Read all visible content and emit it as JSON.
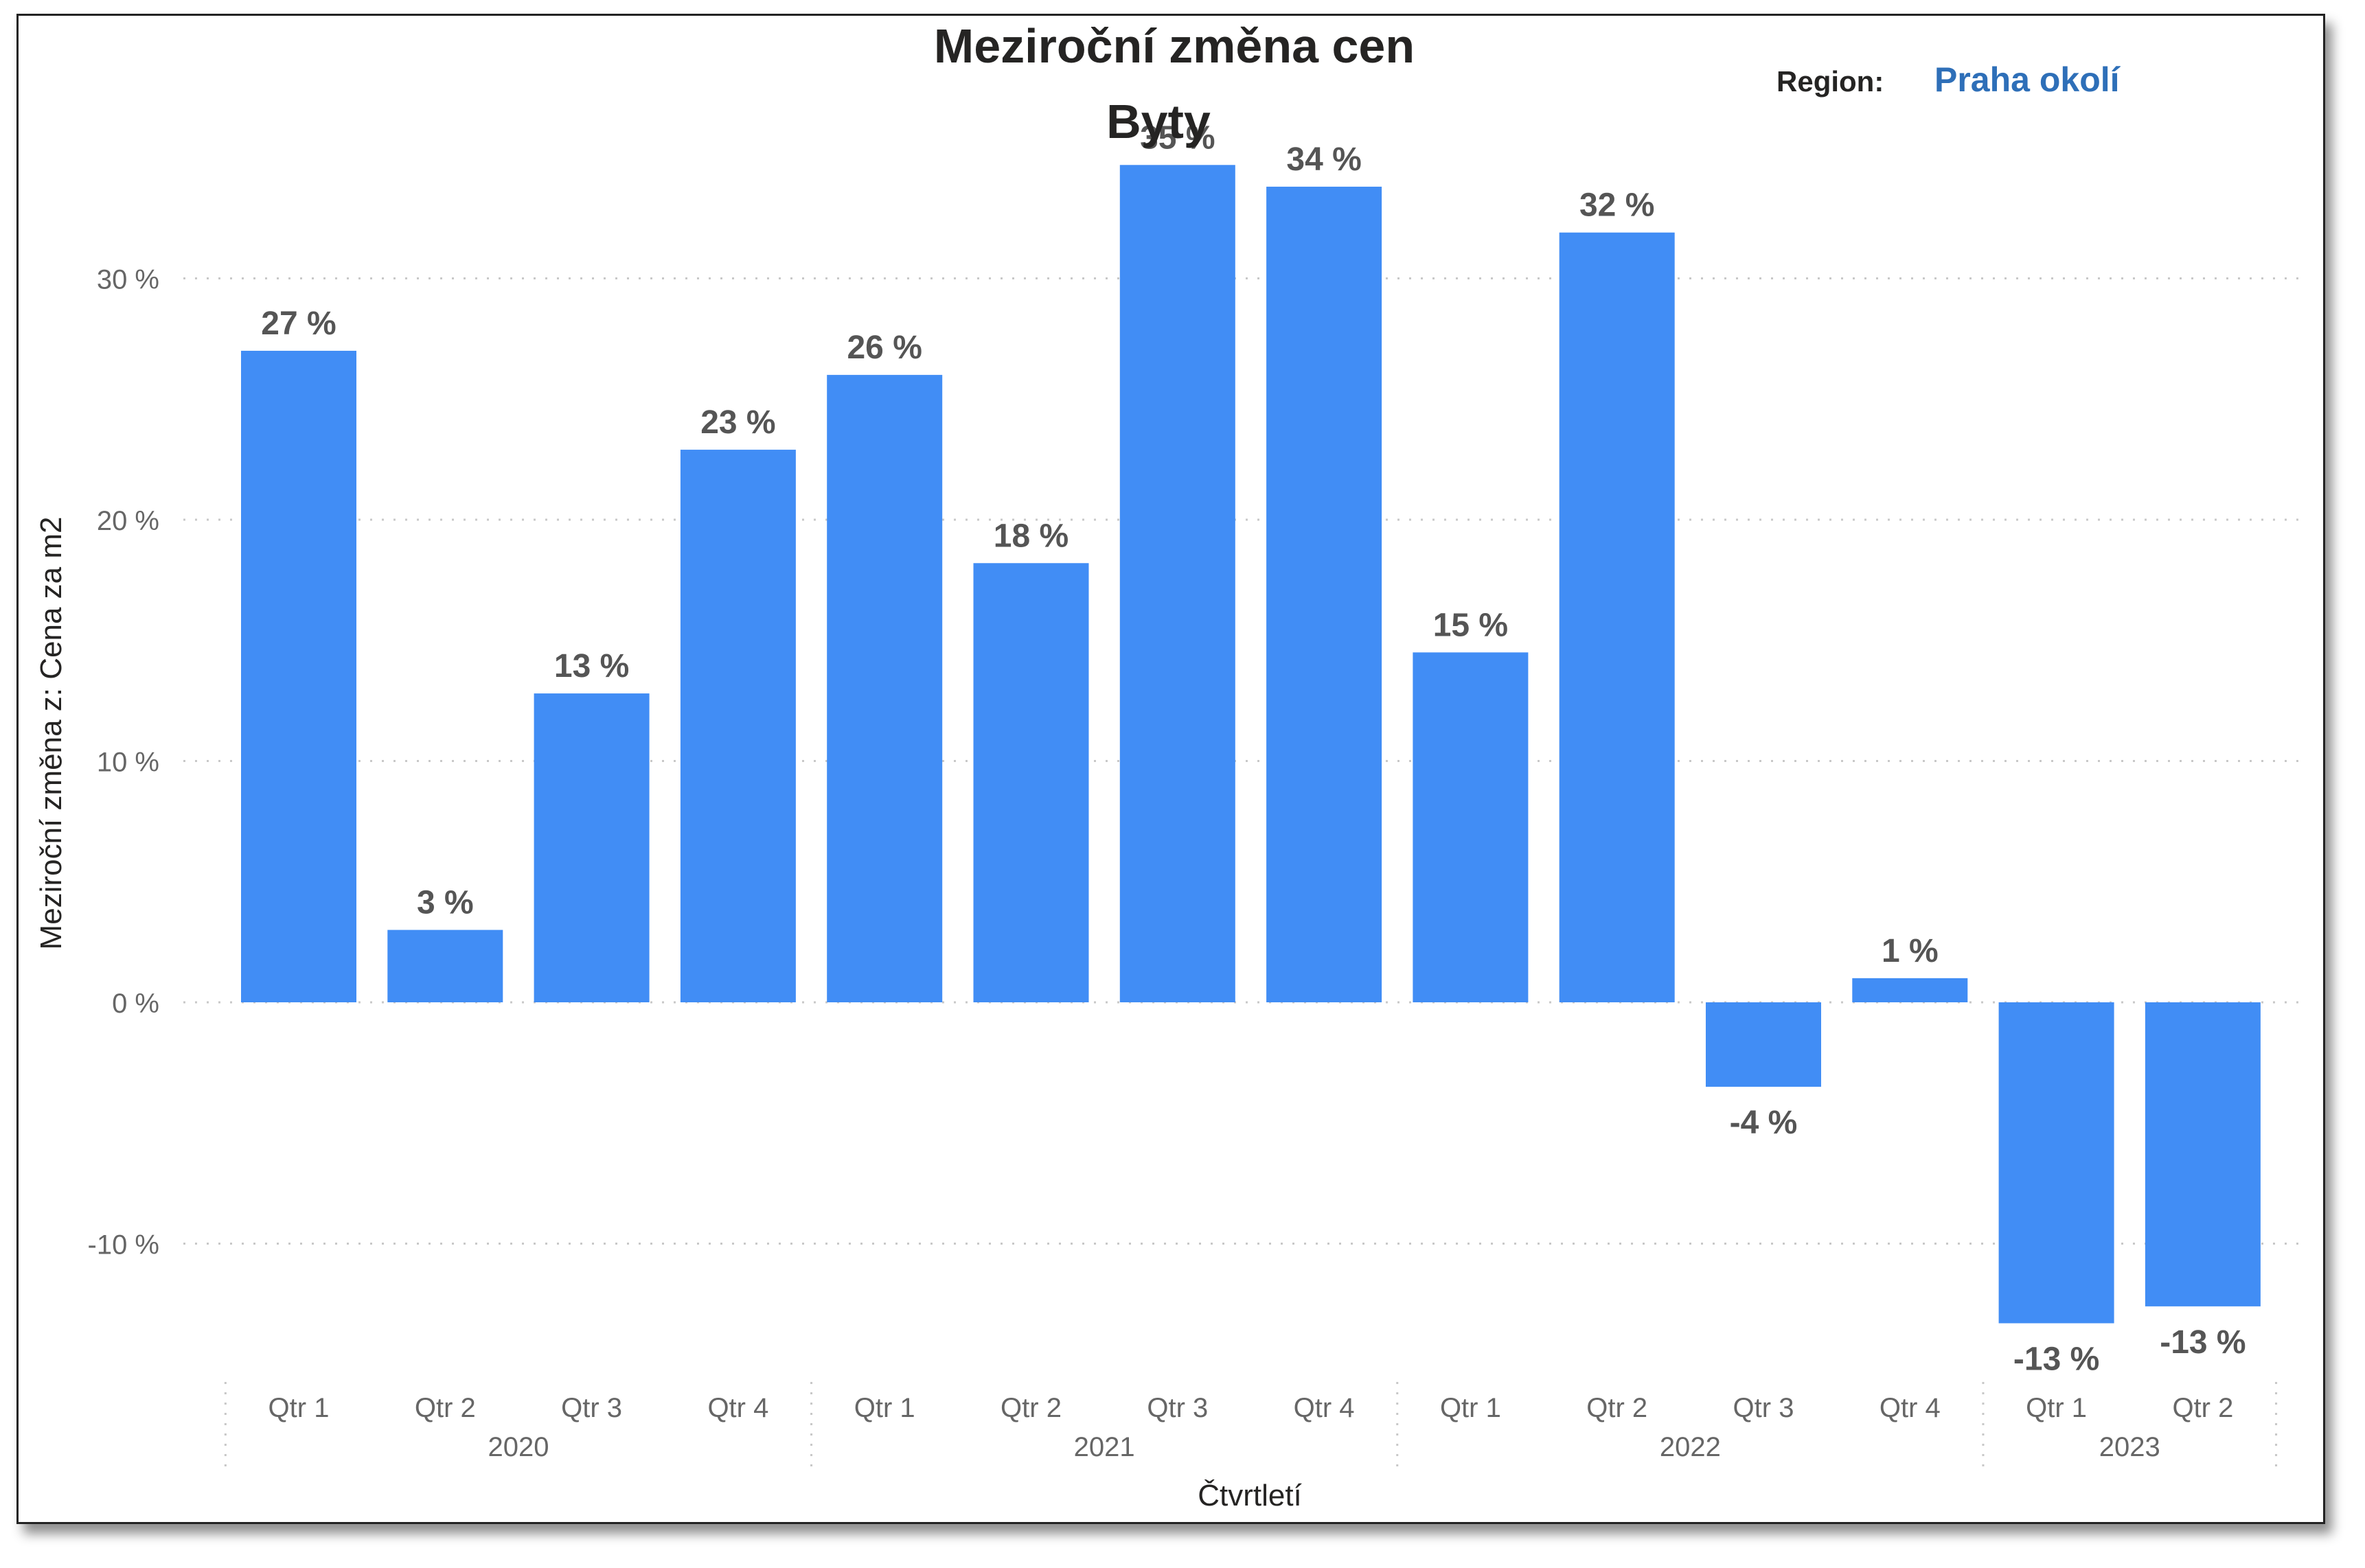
{
  "title": "Meziroční změna cen",
  "subtitle": "Byty",
  "filter": {
    "label": "Region:",
    "value": "Praha okolí"
  },
  "colors": {
    "bar": "#418df5",
    "region_value": "#2e6fb8",
    "gridline": "#c8c8c8"
  },
  "chart_data": {
    "type": "bar",
    "xlabel": "Čtvrtletí",
    "ylabel": "Meziroční změna z: Cena za m2",
    "ylim": [
      -15,
      37.5
    ],
    "yticks": [
      30,
      20,
      10,
      0,
      -10
    ],
    "ytick_labels": [
      "30 %",
      "20 %",
      "10 %",
      "0 %",
      "-10 %"
    ],
    "grid": true,
    "categories": [
      "Qtr 1",
      "Qtr 2",
      "Qtr 3",
      "Qtr 4",
      "Qtr 1",
      "Qtr 2",
      "Qtr 3",
      "Qtr 4",
      "Qtr 1",
      "Qtr 2",
      "Qtr 3",
      "Qtr 4",
      "Qtr 1",
      "Qtr 2"
    ],
    "years": [
      {
        "label": "2020",
        "count": 4
      },
      {
        "label": "2021",
        "count": 4
      },
      {
        "label": "2022",
        "count": 4
      },
      {
        "label": "2023",
        "count": 2
      }
    ],
    "values": [
      27,
      3,
      12.8,
      22.9,
      26,
      18.2,
      34.7,
      33.8,
      14.5,
      31.9,
      -3.5,
      1,
      -13.3,
      -12.6
    ],
    "data_labels": [
      "27 %",
      "3 %",
      "13 %",
      "23 %",
      "26 %",
      "18 %",
      "35 %",
      "34 %",
      "15 %",
      "32 %",
      "-4 %",
      "1 %",
      "-13 %",
      "-13 %"
    ]
  }
}
